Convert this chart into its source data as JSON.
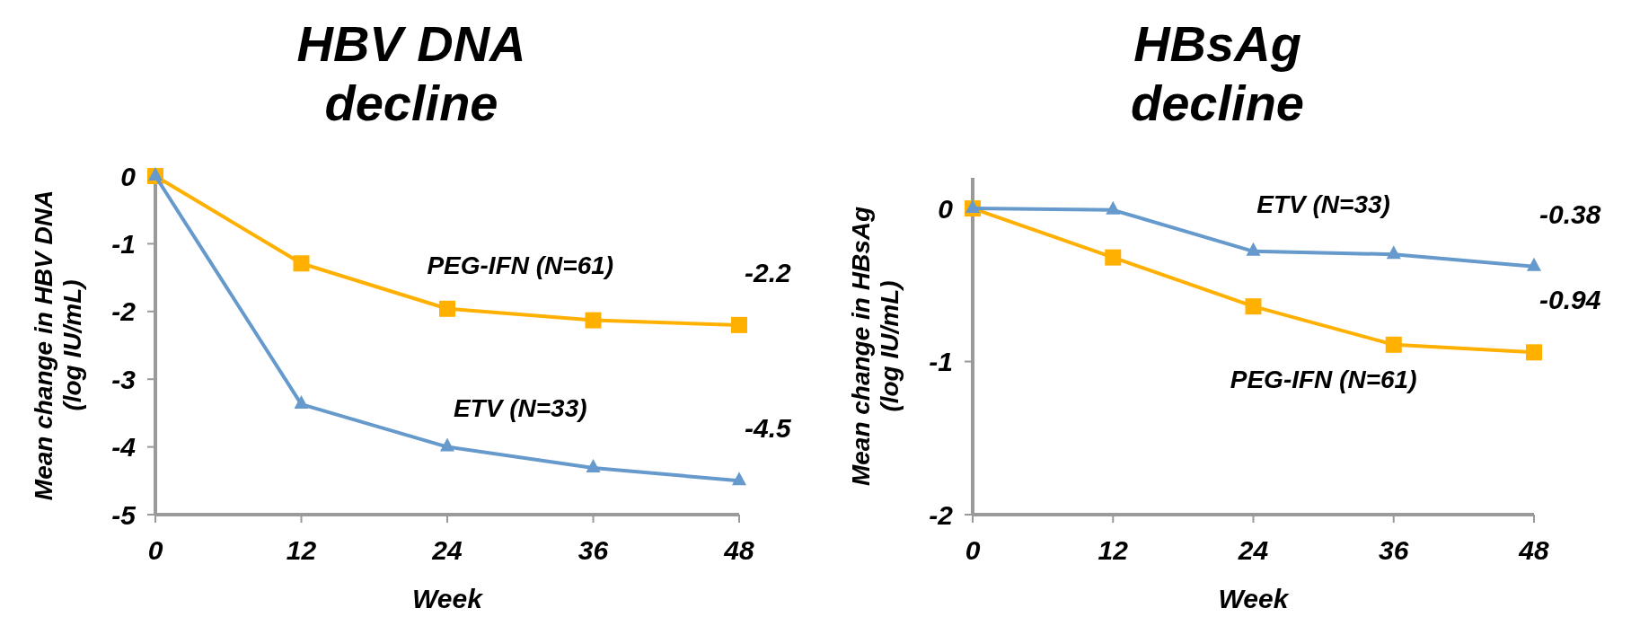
{
  "chart_data": [
    {
      "type": "line",
      "title": "HBV DNA decline",
      "xlabel": "Week",
      "ylabel": "Mean change in HBV DNA (log IU/mL)",
      "x": [
        0,
        12,
        24,
        36,
        48
      ],
      "xlim": [
        0,
        48
      ],
      "xticks": [
        0,
        12,
        24,
        36,
        48
      ],
      "ylim": [
        -5,
        0
      ],
      "yticks": [
        -5,
        -4,
        -3,
        -2,
        -1,
        0
      ],
      "grid": false,
      "legend": false,
      "series": [
        {
          "name": "PEG-IFN (N=61)",
          "color": "#ffb000",
          "marker": "square",
          "values": [
            0,
            -1.29,
            -1.96,
            -2.13,
            -2.2
          ],
          "value_labels": [
            null,
            null,
            null,
            null,
            "-2.2"
          ]
        },
        {
          "name": "ETV (N=33)",
          "color": "#6699cc",
          "marker": "triangle",
          "values": [
            0,
            -3.37,
            -4.0,
            -4.31,
            -4.5
          ],
          "value_labels": [
            null,
            null,
            null,
            null,
            "-4.5"
          ]
        }
      ]
    },
    {
      "type": "line",
      "title": "HBsAg decline",
      "xlabel": "Week",
      "ylabel": "Mean change in HBsAg (log IU/mL)",
      "x": [
        0,
        12,
        24,
        36,
        48
      ],
      "xlim": [
        0,
        48
      ],
      "xticks": [
        0,
        12,
        24,
        36,
        48
      ],
      "ylim": [
        -2,
        0.2
      ],
      "yticks": [
        -2,
        -1,
        0
      ],
      "grid": false,
      "legend": false,
      "series": [
        {
          "name": "PEG-IFN (N=61)",
          "color": "#ffb000",
          "marker": "square",
          "values": [
            0,
            -0.32,
            -0.64,
            -0.89,
            -0.94
          ],
          "value_labels": [
            null,
            null,
            null,
            null,
            "-0.94"
          ]
        },
        {
          "name": "ETV (N=33)",
          "color": "#6699cc",
          "marker": "triangle",
          "values": [
            0,
            -0.01,
            -0.28,
            -0.3,
            -0.38
          ],
          "value_labels": [
            null,
            null,
            null,
            null,
            "-0.38"
          ]
        }
      ]
    }
  ]
}
